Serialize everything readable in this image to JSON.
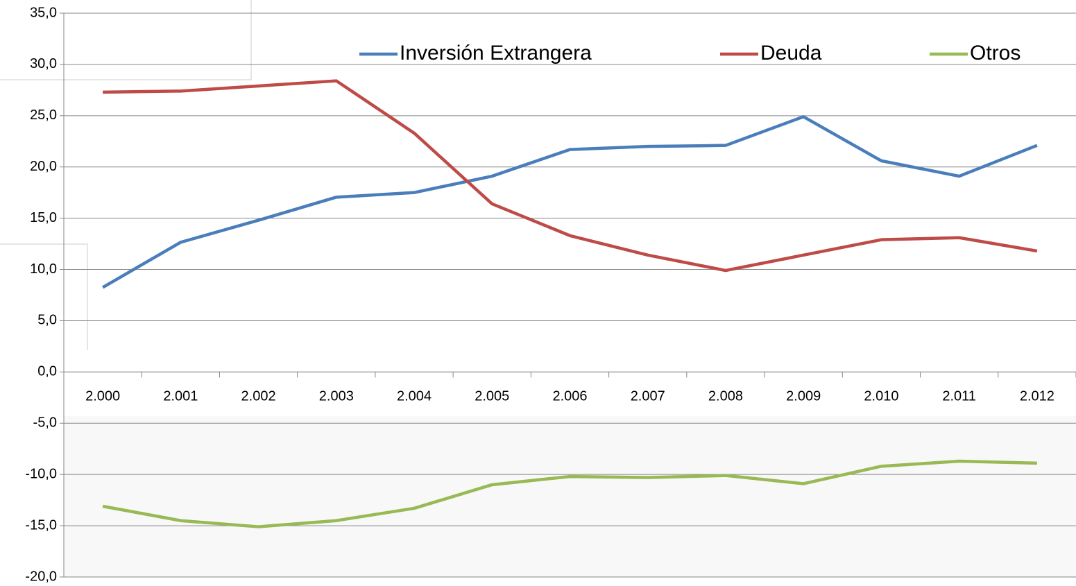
{
  "chart_data": {
    "type": "line",
    "categories": [
      "2.000",
      "2.001",
      "2.002",
      "2.003",
      "2.004",
      "2.005",
      "2.006",
      "2.007",
      "2.008",
      "2.009",
      "2.010",
      "2.011",
      "2.012"
    ],
    "series": [
      {
        "name": "Inversión Extrangera",
        "color": "#4a7ebb",
        "values": [
          8.25,
          12.65,
          14.8,
          17.05,
          17.5,
          19.1,
          21.7,
          22.0,
          22.1,
          24.9,
          20.6,
          19.1,
          22.1
        ]
      },
      {
        "name": "Deuda",
        "color": "#be4b48",
        "values": [
          27.3,
          27.4,
          27.9,
          28.4,
          23.3,
          16.4,
          13.3,
          11.4,
          9.9,
          11.4,
          12.9,
          13.1,
          11.8
        ]
      },
      {
        "name": "Otros",
        "color": "#98b954",
        "values": [
          -13.1,
          -14.5,
          -15.1,
          -14.5,
          -13.3,
          -11.0,
          -10.2,
          -10.3,
          -10.1,
          -10.9,
          -9.2,
          -8.7,
          -8.9
        ]
      }
    ],
    "ylim": [
      -20,
      35
    ],
    "yticks": [
      {
        "value": -20,
        "label": "-20,0"
      },
      {
        "value": -15,
        "label": "-15,0"
      },
      {
        "value": -10,
        "label": "-10,0"
      },
      {
        "value": -5,
        "label": "-5,0"
      },
      {
        "value": 0,
        "label": "0,0"
      },
      {
        "value": 5,
        "label": "5,0"
      },
      {
        "value": 10,
        "label": "10,0"
      },
      {
        "value": 15,
        "label": "15,0"
      },
      {
        "value": 20,
        "label": "20,0"
      },
      {
        "value": 25,
        "label": "25,0"
      },
      {
        "value": 30,
        "label": "30,0"
      },
      {
        "value": 35,
        "label": "35,0"
      }
    ],
    "grid": true,
    "legend": "top-right"
  }
}
